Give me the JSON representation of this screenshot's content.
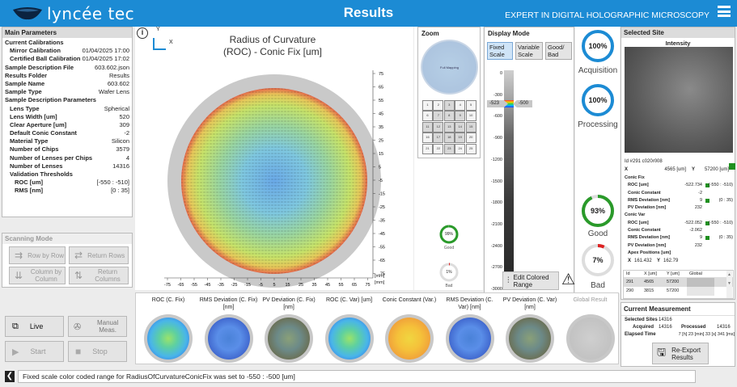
{
  "header": {
    "logo": "lyncée tec",
    "title": "Results",
    "tagline": "EXPERT IN DIGITAL HOLOGRAPHIC MICROSCOPY"
  },
  "main_params": {
    "title": "Main Parameters",
    "rows": [
      {
        "k": "Current Calibrations",
        "v": "",
        "cls": "hd"
      },
      {
        "k": "Mirror Calibration",
        "v": "01/04/2025 17:00",
        "cls": "in1"
      },
      {
        "k": "Certified Ball Calibration",
        "v": "01/04/2025 17:02",
        "cls": "in1"
      },
      {
        "k": "Sample Description File",
        "v": "603.602.json",
        "cls": ""
      },
      {
        "k": "Results Folder",
        "v": "Results",
        "cls": ""
      },
      {
        "k": "Sample Name",
        "v": "603.602",
        "cls": ""
      },
      {
        "k": "Sample Type",
        "v": "Wafer Lens",
        "cls": ""
      },
      {
        "k": "Sample Description Parameters",
        "v": "",
        "cls": "hd"
      },
      {
        "k": "Lens Type",
        "v": "Spherical",
        "cls": "in1"
      },
      {
        "k": "Lens Width [um]",
        "v": "520",
        "cls": "in1"
      },
      {
        "k": "Clear Aperture [um]",
        "v": "309",
        "cls": "in1"
      },
      {
        "k": "Default Conic Constant",
        "v": "-2",
        "cls": "in1"
      },
      {
        "k": "Material Type",
        "v": "Silicon",
        "cls": "in1"
      },
      {
        "k": "Number of Chips",
        "v": "3579",
        "cls": "in1"
      },
      {
        "k": "Number of Lenses per Chips",
        "v": "4",
        "cls": "in1"
      },
      {
        "k": "Number of Lenses",
        "v": "14316",
        "cls": "in1"
      },
      {
        "k": "Validation Thresholds",
        "v": "",
        "cls": "in1"
      },
      {
        "k": "ROC [um]",
        "v": "[-550 : -510]",
        "cls": "in2"
      },
      {
        "k": "RMS [nm]",
        "v": "[0 : 35]",
        "cls": "in2"
      }
    ]
  },
  "scanning": {
    "title": "Scanning Mode",
    "row_by_row": "Row by Row",
    "return_rows": "Return Rows",
    "col_by_col": "Column by Column",
    "return_cols": "Return Columns"
  },
  "controls": {
    "live": "Live",
    "manual": "Manual Meas.",
    "start": "Start",
    "stop": "Stop"
  },
  "status": {
    "message": "Fixed scale color coded range for RadiusOfCurvatureConicFix was set to -550 : -500 [um]"
  },
  "wafer": {
    "title_line1": "Radius of Curvature",
    "title_line2": "(ROC) - Conic Fix [um]",
    "axis_y": "Y",
    "axis_x": "X",
    "unit": "[mm]",
    "xticks": [
      "-75",
      "-65",
      "-55",
      "-45",
      "-35",
      "-25",
      "-15",
      "-5",
      "5",
      "15",
      "25",
      "35",
      "45",
      "55",
      "65",
      "75"
    ],
    "yticks": [
      "75",
      "65",
      "55",
      "45",
      "35",
      "25",
      "15",
      "5",
      "-5",
      "-15",
      "-25",
      "-35",
      "-45",
      "-55",
      "-65",
      "-75"
    ]
  },
  "mini": {
    "good_pct": "99%",
    "good": "Good",
    "bad_pct": "1%",
    "bad": "Bad"
  },
  "zoom": {
    "title": "Zoom",
    "full": "Full Mapping",
    "cells": [
      [
        "1",
        "2",
        "3",
        "4",
        "5"
      ],
      [
        "6",
        "7",
        "8",
        "9",
        "10"
      ],
      [
        "11",
        "12",
        "13",
        "14",
        "15"
      ],
      [
        "16",
        "17",
        "18",
        "19",
        "20"
      ],
      [
        "21",
        "22",
        "23",
        "24",
        "25"
      ]
    ]
  },
  "display_mode": {
    "title": "Display Mode",
    "fixed": "Fixed Scale",
    "variable": "Variable Scale",
    "goodbad": "Good/ Bad"
  },
  "scale": {
    "ticks": [
      "0",
      "-300",
      "-600",
      "-900",
      "-1200",
      "-1500",
      "-1800",
      "-2100",
      "-2400",
      "-2700",
      "-3000"
    ],
    "left_marker": "-523",
    "right_marker": "-500",
    "edit": "Edit Colored Range"
  },
  "gauges": {
    "acq_pct": "100%",
    "acq": "Acquisition",
    "proc_pct": "100%",
    "proc": "Processing",
    "good_pct": "93%",
    "good": "Good",
    "bad_pct": "7%",
    "bad": "Bad",
    "good_val": 0.93,
    "bad_val": 0.07
  },
  "selected_site": {
    "title": "Selected Site",
    "image_title": "Intensity",
    "id_line": "Id  #291   c020r008",
    "x_label": "X",
    "x_val": "4565 [um]",
    "y_label": "Y",
    "y_val": "57200 [um]",
    "rows": [
      {
        "k": "Conic Fix",
        "v": "",
        "r": "",
        "c": "sec"
      },
      {
        "k": "ROC [um]",
        "v": "-522.734",
        "r": "(-550 : -510)",
        "c": "g"
      },
      {
        "k": "Conic Constant",
        "v": "-2",
        "r": "",
        "c": ""
      },
      {
        "k": "RMS Deviation [nm]",
        "v": "9",
        "r": "(0 : 35)",
        "c": "g"
      },
      {
        "k": "PV Deviation [nm]",
        "v": "232",
        "r": "",
        "c": ""
      },
      {
        "k": "Conic Var",
        "v": "",
        "r": "",
        "c": "sec"
      },
      {
        "k": "ROC [um]",
        "v": "-522.052",
        "r": "(-550 : -510)",
        "c": "g"
      },
      {
        "k": "Conic Constant",
        "v": "-2.062",
        "r": "",
        "c": ""
      },
      {
        "k": "RMS Deviation [nm]",
        "v": "9",
        "r": "(0 : 35)",
        "c": "g"
      },
      {
        "k": "PV Deviation [nm]",
        "v": "232",
        "r": "",
        "c": ""
      },
      {
        "k": "Apex Positions [um]",
        "v": "",
        "r": "",
        "c": ""
      }
    ],
    "apex_x_label": "X",
    "apex_x": "161.432",
    "apex_y_label": "Y",
    "apex_y": "162.79",
    "table_headers": [
      "Id",
      "X [um]",
      "Y [um]",
      "Global"
    ],
    "table_rows": [
      [
        "291",
        "4565",
        "57200"
      ],
      [
        "290",
        "3815",
        "57200"
      ]
    ]
  },
  "current": {
    "title": "Current Measurement",
    "sel_label": "Selected Sites",
    "sel": "14316",
    "acq_label": "Acquired",
    "acq": "14316",
    "proc_label": "Processed",
    "proc": "14316",
    "elapsed_label": "Elapsed Time",
    "elapsed": "7 [h] 23 [min] 33 [s] 341 [ms]",
    "reexport": "Re-Export Results"
  },
  "tiles": [
    {
      "label": "ROC (C. Fix)",
      "kind": "jet"
    },
    {
      "label": "RMS Deviation (C. Fix) [nm]",
      "kind": "blue"
    },
    {
      "label": "PV Deviation (C. Fix) [nm]",
      "kind": "brown"
    },
    {
      "label": "ROC (C. Var) [um]",
      "kind": "jet"
    },
    {
      "label": "Conic Constant (Var.)",
      "kind": "warm"
    },
    {
      "label": "RMS Deviation (C. Var) [nm]",
      "kind": "blue"
    },
    {
      "label": "PV Deviation (C. Var) [nm]",
      "kind": "brown"
    },
    {
      "label": "Global Result",
      "kind": "grey"
    }
  ]
}
